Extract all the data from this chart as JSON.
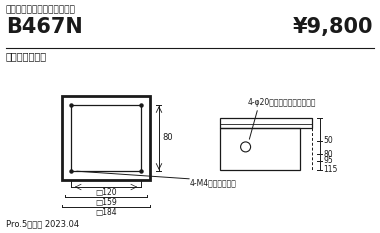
{
  "title_sub": "フラット施工用取付ボックス",
  "title_main": "B467N",
  "price": "¥9,800",
  "material": "亜鉛メッキ鋼板",
  "footer": "Pro.5改訂版 2023.04",
  "dim_120": "□120",
  "dim_159": "□159",
  "dim_184": "□184",
  "dim_80": "80",
  "dim_50": "50",
  "dim_80b": "80",
  "dim_95": "95",
  "dim_115": "115",
  "label_knockout": "4-φ20通線用ノックアウト穴",
  "label_m4": "4-M4器具取付用穴",
  "bg_color": "#ffffff",
  "text_color": "#1a1a1a",
  "line_color": "#1a1a1a"
}
